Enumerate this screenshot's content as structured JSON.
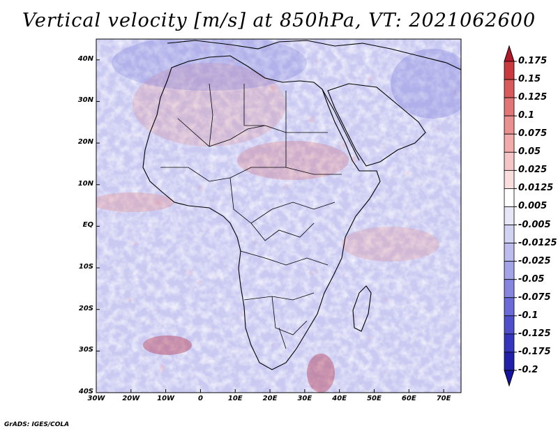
{
  "title": "Vertical velocity [m/s] at 850hPa, VT: 2021062600",
  "footer": "GrADS: IGES/COLA",
  "map": {
    "lat_range": [
      -40,
      45
    ],
    "lon_range": [
      -30,
      75
    ],
    "y_ticks": [
      {
        "label": "40N",
        "lat": 40
      },
      {
        "label": "30N",
        "lat": 30
      },
      {
        "label": "20N",
        "lat": 20
      },
      {
        "label": "10N",
        "lat": 10
      },
      {
        "label": "EQ",
        "lat": 0
      },
      {
        "label": "10S",
        "lat": -10
      },
      {
        "label": "20S",
        "lat": -20
      },
      {
        "label": "30S",
        "lat": -30
      },
      {
        "label": "40S",
        "lat": -40
      }
    ],
    "x_ticks": [
      {
        "label": "30W",
        "lon": -30
      },
      {
        "label": "20W",
        "lon": -20
      },
      {
        "label": "10W",
        "lon": -10
      },
      {
        "label": "0",
        "lon": 0
      },
      {
        "label": "10E",
        "lon": 10
      },
      {
        "label": "20E",
        "lon": 20
      },
      {
        "label": "30E",
        "lon": 30
      },
      {
        "label": "40E",
        "lon": 40
      },
      {
        "label": "50E",
        "lon": 50
      },
      {
        "label": "60E",
        "lon": 60
      },
      {
        "label": "70E",
        "lon": 70
      }
    ]
  },
  "colorbar": {
    "labels": [
      "0.175",
      "0.15",
      "0.125",
      "0.1",
      "0.075",
      "0.05",
      "0.025",
      "0.0125",
      "0.005",
      "-0.005",
      "-0.0125",
      "-0.025",
      "-0.05",
      "-0.075",
      "-0.1",
      "-0.125",
      "-0.175",
      "-0.2"
    ],
    "colors": [
      "#b2182b",
      "#c93a3f",
      "#d85a5a",
      "#e27575",
      "#ea9090",
      "#f1abab",
      "#f6c6c6",
      "#fadddd",
      "#ffffff",
      "#e6e6f6",
      "#d2d2f2",
      "#bcbcee",
      "#a3a3e8",
      "#8686e0",
      "#6a6ad8",
      "#4f4fcc",
      "#3636bd",
      "#2020a8",
      "#1414a0"
    ]
  }
}
